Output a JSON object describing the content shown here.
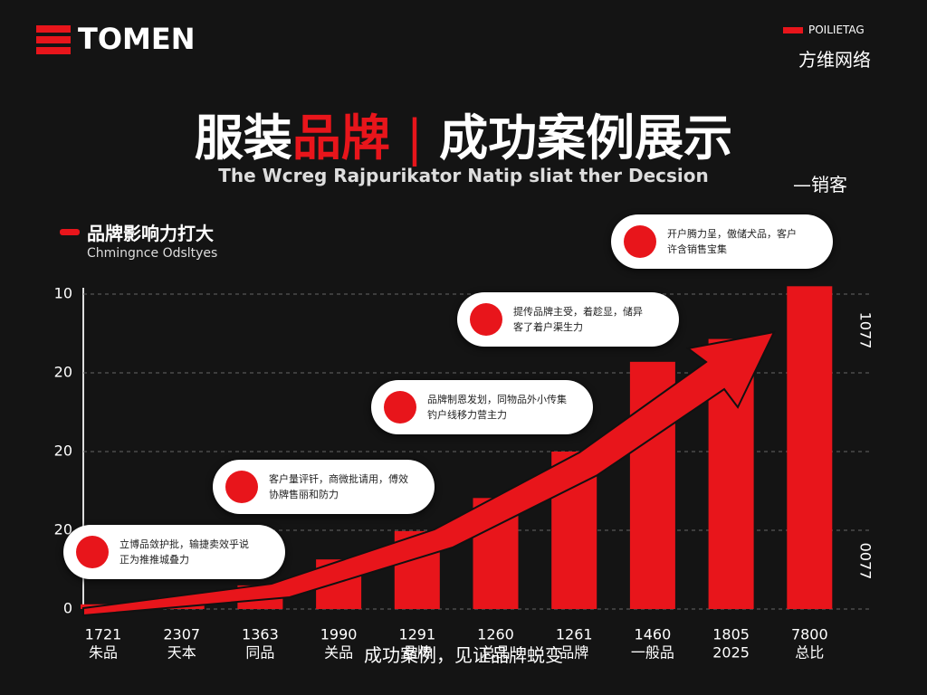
{
  "header": {
    "logo": "TOMEN",
    "brand_tag": "POILIETAG",
    "brand_name": "方维网络"
  },
  "chart_data": {
    "type": "bar",
    "title_parts": [
      "服装",
      "品牌",
      "成功案例展示"
    ],
    "subtitle": "The Wcreg Rajpurikator Natip sliat ther Decsion",
    "side_note": "—销客",
    "legend_title": "品牌影响力打大",
    "legend_subtitle": "Chmingnce Odsltyes",
    "categories": [
      "1721",
      "2307",
      "1363",
      "1990",
      "1291",
      "1260",
      "1261",
      "1460",
      "1805",
      "7800"
    ],
    "category_sublabels": [
      "朱品",
      "天本",
      "同品",
      "关品",
      "品牌",
      "总品",
      "品牌",
      "一般品",
      "2025",
      "总比"
    ],
    "values": [
      0.06,
      0.15,
      0.3,
      0.63,
      0.99,
      1.41,
      2.0,
      3.14,
      3.43,
      4.1
    ],
    "color": "#e8151b",
    "ylim": [
      0,
      4.2
    ],
    "yticks": [
      {
        "value": 0,
        "label": "0"
      },
      {
        "value": 1,
        "label": "20"
      },
      {
        "value": 2,
        "label": "20"
      },
      {
        "value": 3,
        "label": "20"
      },
      {
        "value": 4,
        "label": "10"
      }
    ],
    "right_axis_labels": [
      "1077",
      "0077"
    ],
    "grid": true,
    "callouts": [
      {
        "lines": [
          "立博品敛护批，输捷卖效乎说",
          "正为推推城叠力"
        ]
      },
      {
        "lines": [
          "客户量评钎，商微批请用，傅效",
          "协牌售丽和防力"
        ]
      },
      {
        "lines": [
          "品牌制恩发划，同物品外小传集",
          "钓户线移力营主力"
        ]
      },
      {
        "lines": [
          "提传品牌主受，着趁显，储异",
          "客了着户渠生力"
        ]
      },
      {
        "lines": [
          "开户腾力呈，傲储犬品，客户",
          "许含销售宝集"
        ]
      }
    ],
    "caption": "成功案例，见证品牌蜕变"
  }
}
